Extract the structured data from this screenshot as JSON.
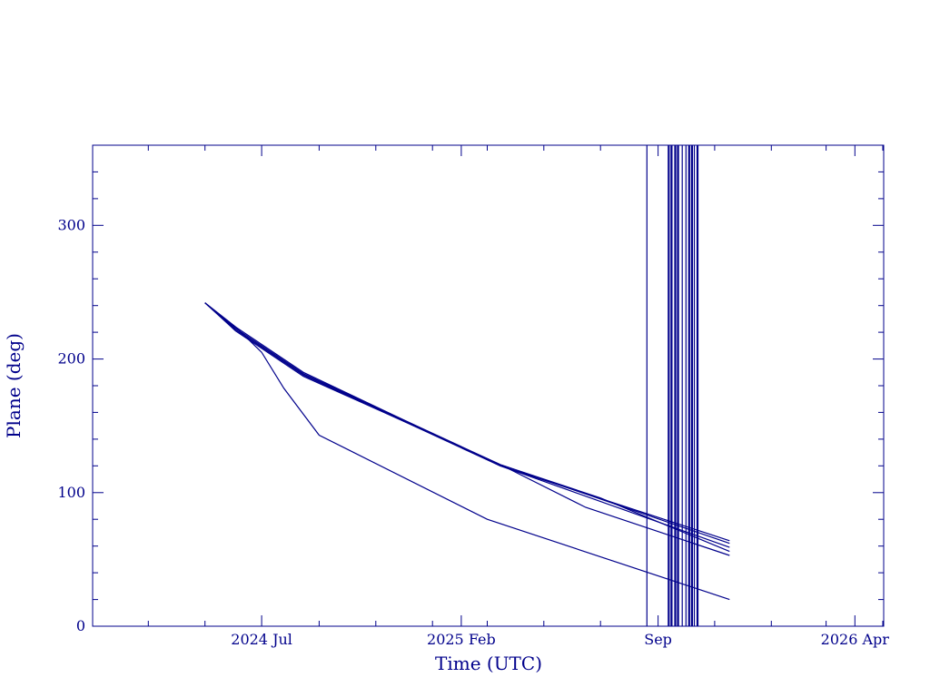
{
  "chart_data": {
    "type": "line",
    "xlabel": "Time (UTC)",
    "ylabel": "Plane (deg)",
    "xlim": [
      "2024-01-01",
      "2026-05-02"
    ],
    "ylim": [
      0,
      360
    ],
    "x_ticks": [
      {
        "date": "2024-07-01",
        "label": "2024 Jul"
      },
      {
        "date": "2025-02-01",
        "label": "2025 Feb"
      },
      {
        "date": "2025-09-01",
        "label": "Sep"
      },
      {
        "date": "2026-04-01",
        "label": "2026 Apr"
      }
    ],
    "y_ticks": [
      0,
      100,
      200,
      300
    ],
    "color": "#00008b",
    "series": [
      {
        "x": [
          "2024-05-01",
          "2024-06-03",
          "2024-08-15",
          "2025-03-15",
          "2025-11-17"
        ],
        "y": [
          242,
          224,
          190,
          120,
          64
        ]
      },
      {
        "x": [
          "2024-05-01",
          "2024-06-03",
          "2024-08-15",
          "2025-03-15",
          "2025-11-17"
        ],
        "y": [
          242,
          223,
          189,
          121,
          62
        ]
      },
      {
        "x": [
          "2024-05-01",
          "2024-06-03",
          "2024-08-15",
          "2025-03-15",
          "2025-11-17"
        ],
        "y": [
          242,
          222,
          188,
          120,
          59
        ]
      },
      {
        "x": [
          "2024-05-01",
          "2024-06-03",
          "2024-08-15",
          "2025-03-15",
          "2025-07-01",
          "2025-11-17"
        ],
        "y": [
          242,
          222,
          188,
          121,
          96,
          56
        ]
      },
      {
        "x": [
          "2024-05-01",
          "2024-06-03",
          "2024-08-15",
          "2025-03-15",
          "2025-06-15",
          "2025-11-17"
        ],
        "y": [
          242,
          221,
          187,
          121,
          89,
          53
        ]
      },
      {
        "x": [
          "2024-05-01",
          "2024-06-03",
          "2024-07-01",
          "2024-07-25",
          "2024-09-01",
          "2025-03-01",
          "2025-11-17"
        ],
        "y": [
          242,
          224,
          205,
          178,
          143,
          80,
          20
        ]
      }
    ],
    "vlines": [
      "2025-08-20",
      "2025-09-12",
      "2025-09-13",
      "2025-09-15",
      "2025-09-16",
      "2025-09-19",
      "2025-09-20",
      "2025-09-22",
      "2025-09-23",
      "2025-09-27",
      "2025-10-01",
      "2025-10-04",
      "2025-10-05",
      "2025-10-07",
      "2025-10-08",
      "2025-10-10",
      "2025-10-13",
      "2025-10-14"
    ]
  }
}
